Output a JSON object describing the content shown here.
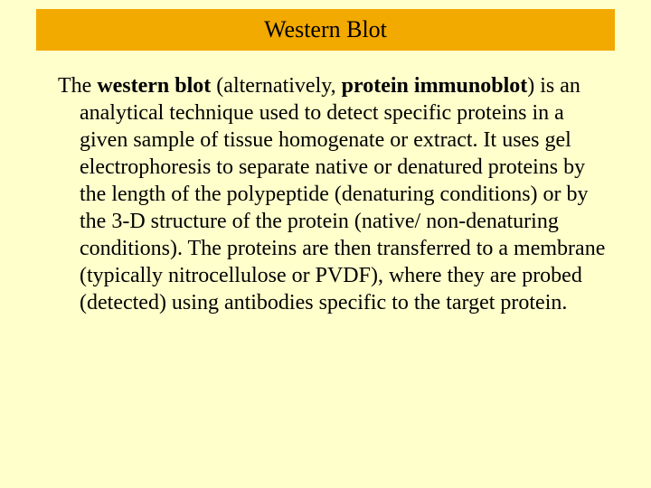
{
  "slide": {
    "title": "Western Blot",
    "paragraph": {
      "lead": "The ",
      "term1": "western blot",
      "mid1": " (alternatively, ",
      "term2": "protein immunoblot",
      "rest": ") is an analytical technique used to detect specific proteins in a given sample of tissue homogenate or extract. It uses gel electrophoresis to separate native or denatured proteins by the length of the polypeptide (denaturing conditions) or by the 3-D structure of the protein (native/ non-denaturing conditions). The proteins are then transferred to a membrane (typically nitrocellulose or PVDF), where they are probed (detected) using antibodies specific to the target protein."
    }
  },
  "style": {
    "background_color": "#ffffcc",
    "title_bar_color": "#f2a900",
    "title_text_color": "#000000",
    "body_text_color": "#000000",
    "title_fontsize": 26,
    "body_fontsize": 24,
    "font_family": "Times New Roman"
  }
}
